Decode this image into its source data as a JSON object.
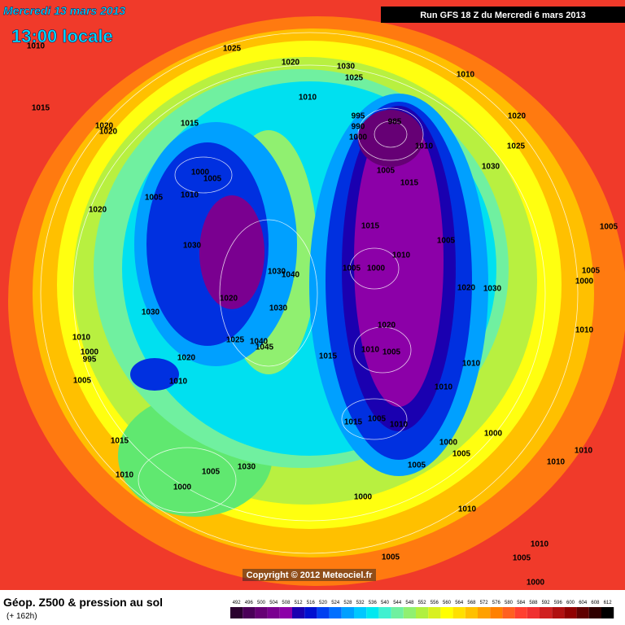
{
  "header": {
    "date": "Mercredi 13 mars 2013",
    "time": "13:00 locale",
    "run": "Run GFS 18 Z du Mercredi 6 mars 2013"
  },
  "copyright": "Copyright © 2012 Meteociel.fr",
  "footer": {
    "title": "Géop. Z500 & pression au sol",
    "lead": "(+ 162h)"
  },
  "legend": {
    "values": [
      492,
      496,
      500,
      504,
      508,
      512,
      516,
      520,
      524,
      528,
      532,
      536,
      540,
      544,
      548,
      552,
      556,
      560,
      564,
      568,
      572,
      576,
      580,
      584,
      588,
      592,
      596,
      600,
      604,
      608,
      612
    ],
    "colors": [
      "#2a002e",
      "#4a0058",
      "#660075",
      "#7a0090",
      "#8c00a8",
      "#1a00b0",
      "#0010d0",
      "#0040f0",
      "#0070ff",
      "#00a0ff",
      "#00c8ff",
      "#00e8f0",
      "#40f0d0",
      "#70f0a0",
      "#90f070",
      "#b0f040",
      "#d8f020",
      "#ffff00",
      "#ffe000",
      "#ffc000",
      "#ffa000",
      "#ff8000",
      "#ff6020",
      "#ff4030",
      "#f03030",
      "#d02020",
      "#b01010",
      "#900000",
      "#600000",
      "#300000",
      "#000000"
    ]
  },
  "isobars": [
    "1010",
    "1025",
    "1020",
    "1030",
    "1025",
    "1010",
    "1010",
    "1015",
    "995",
    "990",
    "985",
    "1020",
    "1020",
    "1015",
    "1020",
    "1000",
    "1010",
    "1025",
    "1000",
    "1005",
    "1005",
    "1030",
    "1005",
    "1010",
    "1015",
    "1020",
    "1015",
    "1005",
    "1005",
    "1030",
    "1010",
    "1005",
    "1000",
    "1030",
    "1040",
    "1005",
    "1000",
    "1020",
    "1030",
    "1020",
    "1030",
    "1030",
    "1020",
    "1010",
    "1010",
    "1025",
    "1040",
    "1045",
    "1000",
    "995",
    "1015",
    "1010",
    "1005",
    "1020",
    "1010",
    "1010",
    "1005",
    "1010",
    "1000",
    "1015",
    "1005",
    "1010",
    "1015",
    "1000",
    "1005",
    "1010",
    "1005",
    "1010",
    "1005",
    "1030",
    "1010",
    "1000",
    "1000",
    "1010",
    "1010",
    "1005",
    "1005",
    "1000"
  ]
}
